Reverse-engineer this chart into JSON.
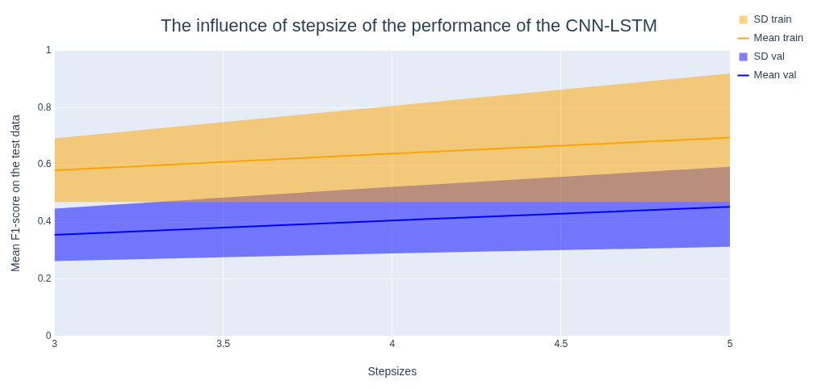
{
  "chart_data": {
    "type": "line",
    "title": "The influence of stepsize of the performance of the CNN-LSTM",
    "xlabel": "Stepsizes",
    "ylabel": "Mean F1-score on the test data",
    "x": [
      3,
      4,
      5
    ],
    "series": [
      {
        "name": "SD train",
        "type": "area",
        "color": "#ffa500",
        "values": [
          null,
          null,
          null
        ]
      },
      {
        "name": "Mean train",
        "color": "#ffa500",
        "values": [
          0.581,
          0.639,
          0.695
        ],
        "lower": [
          0.47,
          0.47,
          0.47
        ],
        "upper": [
          0.692,
          0.806,
          0.919
        ]
      },
      {
        "name": "SD val",
        "type": "area",
        "color": "#0000ff",
        "values": [
          null,
          null,
          null
        ]
      },
      {
        "name": "Mean val",
        "color": "#0000ff",
        "values": [
          0.355,
          0.405,
          0.453
        ],
        "lower": [
          0.263,
          0.29,
          0.313
        ],
        "upper": [
          0.447,
          0.523,
          0.593
        ]
      }
    ],
    "xlim": [
      3,
      5
    ],
    "xticks": [
      3,
      3.5,
      4,
      4.5,
      5
    ],
    "ylim": [
      0,
      1
    ],
    "yticks": [
      0,
      0.2,
      0.4,
      0.6,
      0.8,
      1
    ],
    "grid": true,
    "legend": "top right",
    "line_style": "solid",
    "marker": "none"
  }
}
